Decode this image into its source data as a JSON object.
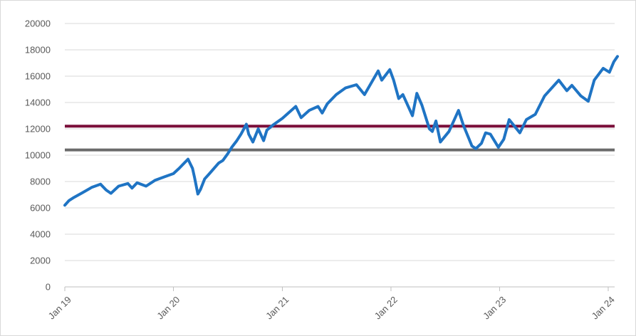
{
  "chart_data": {
    "type": "line",
    "title": "",
    "xlabel": "",
    "ylabel": "",
    "ylim": [
      0,
      20000
    ],
    "yticks": [
      0,
      2000,
      4000,
      6000,
      8000,
      10000,
      12000,
      14000,
      16000,
      18000,
      20000
    ],
    "xlim": [
      "2019-01-01",
      "2024-02-01"
    ],
    "xticks": [
      {
        "date": "2019-01-01",
        "label": "Jan 19"
      },
      {
        "date": "2020-01-01",
        "label": "Jan 20"
      },
      {
        "date": "2021-01-01",
        "label": "Jan 21"
      },
      {
        "date": "2022-01-01",
        "label": "Jan 22"
      },
      {
        "date": "2023-01-01",
        "label": "Jan 23"
      },
      {
        "date": "2024-01-01",
        "label": "Jan 24"
      }
    ],
    "grid": "horizontal",
    "legend": "none",
    "series": [
      {
        "color": "#1f74c4",
        "points": [
          [
            "2019-01-01",
            6200
          ],
          [
            "2019-01-15",
            6550
          ],
          [
            "2019-02-01",
            6800
          ],
          [
            "2019-03-01",
            7150
          ],
          [
            "2019-04-01",
            7550
          ],
          [
            "2019-05-01",
            7800
          ],
          [
            "2019-05-20",
            7350
          ],
          [
            "2019-06-05",
            7100
          ],
          [
            "2019-07-01",
            7650
          ],
          [
            "2019-08-01",
            7850
          ],
          [
            "2019-08-15",
            7500
          ],
          [
            "2019-09-01",
            7900
          ],
          [
            "2019-10-01",
            7650
          ],
          [
            "2019-11-01",
            8100
          ],
          [
            "2019-12-01",
            8350
          ],
          [
            "2020-01-01",
            8600
          ],
          [
            "2020-01-20",
            9000
          ],
          [
            "2020-02-19",
            9700
          ],
          [
            "2020-03-05",
            9000
          ],
          [
            "2020-03-12",
            8300
          ],
          [
            "2020-03-23",
            7050
          ],
          [
            "2020-04-01",
            7400
          ],
          [
            "2020-04-15",
            8200
          ],
          [
            "2020-05-01",
            8600
          ],
          [
            "2020-06-01",
            9400
          ],
          [
            "2020-06-15",
            9600
          ],
          [
            "2020-07-01",
            10100
          ],
          [
            "2020-07-15",
            10600
          ],
          [
            "2020-08-01",
            11100
          ],
          [
            "2020-08-15",
            11600
          ],
          [
            "2020-09-02",
            12350
          ],
          [
            "2020-09-10",
            11600
          ],
          [
            "2020-09-24",
            11000
          ],
          [
            "2020-10-12",
            12000
          ],
          [
            "2020-10-30",
            11100
          ],
          [
            "2020-11-10",
            11900
          ],
          [
            "2020-12-01",
            12300
          ],
          [
            "2021-01-01",
            12800
          ],
          [
            "2021-02-15",
            13700
          ],
          [
            "2021-03-05",
            12850
          ],
          [
            "2021-04-01",
            13400
          ],
          [
            "2021-05-01",
            13700
          ],
          [
            "2021-05-15",
            13200
          ],
          [
            "2021-06-01",
            13900
          ],
          [
            "2021-07-01",
            14600
          ],
          [
            "2021-08-01",
            15100
          ],
          [
            "2021-09-07",
            15350
          ],
          [
            "2021-10-04",
            14600
          ],
          [
            "2021-11-19",
            16400
          ],
          [
            "2021-12-01",
            15700
          ],
          [
            "2021-12-28",
            16500
          ],
          [
            "2022-01-10",
            15700
          ],
          [
            "2022-01-27",
            14300
          ],
          [
            "2022-02-10",
            14600
          ],
          [
            "2022-03-14",
            13000
          ],
          [
            "2022-03-29",
            14700
          ],
          [
            "2022-04-15",
            13800
          ],
          [
            "2022-05-10",
            12000
          ],
          [
            "2022-05-20",
            11800
          ],
          [
            "2022-06-01",
            12600
          ],
          [
            "2022-06-16",
            11000
          ],
          [
            "2022-07-15",
            11800
          ],
          [
            "2022-08-16",
            13400
          ],
          [
            "2022-09-01",
            12300
          ],
          [
            "2022-09-30",
            10700
          ],
          [
            "2022-10-13",
            10500
          ],
          [
            "2022-11-01",
            10900
          ],
          [
            "2022-11-15",
            11700
          ],
          [
            "2022-12-01",
            11600
          ],
          [
            "2022-12-28",
            10600
          ],
          [
            "2023-01-15",
            11200
          ],
          [
            "2023-02-02",
            12700
          ],
          [
            "2023-03-10",
            11700
          ],
          [
            "2023-04-01",
            12700
          ],
          [
            "2023-05-01",
            13100
          ],
          [
            "2023-06-01",
            14500
          ],
          [
            "2023-07-19",
            15700
          ],
          [
            "2023-08-15",
            14900
          ],
          [
            "2023-09-01",
            15300
          ],
          [
            "2023-10-01",
            14500
          ],
          [
            "2023-10-26",
            14100
          ],
          [
            "2023-11-15",
            15700
          ],
          [
            "2023-12-15",
            16600
          ],
          [
            "2024-01-05",
            16300
          ],
          [
            "2024-01-20",
            17100
          ],
          [
            "2024-02-01",
            17500
          ]
        ]
      }
    ],
    "reference_lines": [
      {
        "value": 12200,
        "color": "#7a0e3a"
      },
      {
        "value": 10400,
        "color": "#6b6b6b"
      }
    ]
  }
}
